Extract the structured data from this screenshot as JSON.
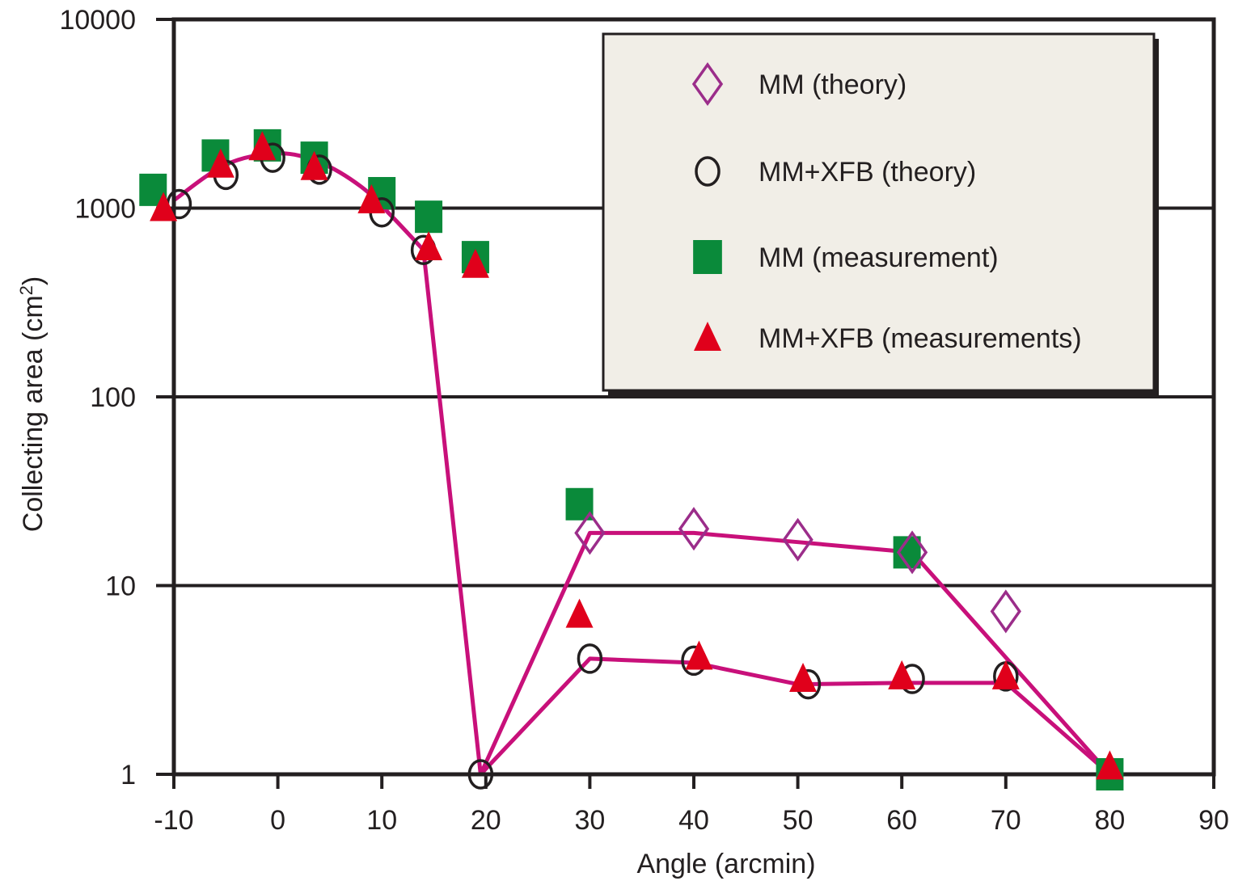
{
  "chart_data": {
    "type": "scatter",
    "xlabel": "Angle (arcmin)",
    "ylabel": "Collecting area (cm",
    "ylabel_superscript": "2",
    "ylabel_suffix": ")",
    "y_scale": "log",
    "xlim": [
      -10,
      90
    ],
    "ylim": [
      1,
      10000
    ],
    "x_ticks": [
      -10,
      0,
      10,
      20,
      30,
      40,
      50,
      60,
      70,
      80,
      90
    ],
    "x_tick_labels": [
      "-10",
      "0",
      "10",
      "20",
      "30",
      "40",
      "50",
      "60",
      "70",
      "80",
      "90"
    ],
    "y_ticks": [
      1,
      10,
      100,
      1000,
      10000
    ],
    "y_tick_labels": [
      "1",
      "10",
      "100",
      "1000",
      "10000"
    ],
    "grid": "horizontal",
    "legend_position": "top-right",
    "colors": {
      "line": "#c8107a",
      "diamond": "#9b2d8a",
      "circle": "#231f20",
      "square": "#0a8a3a",
      "triangle": "#e0001b",
      "legend_bg": "#f1eee7",
      "frame": "#231f20"
    },
    "series": [
      {
        "name": "MM (theory)",
        "marker": "diamond",
        "points": [
          [
            30,
            19
          ],
          [
            40,
            20
          ],
          [
            50,
            17.5
          ],
          [
            61,
            15
          ],
          [
            70,
            7.3
          ]
        ]
      },
      {
        "name": "MM+XFB (theory)",
        "marker": "circle",
        "points": [
          [
            -9.5,
            1050
          ],
          [
            -5,
            1500
          ],
          [
            -0.5,
            1850
          ],
          [
            4,
            1600
          ],
          [
            10,
            950
          ],
          [
            14,
            600
          ],
          [
            19.5,
            1
          ],
          [
            30,
            4.1
          ],
          [
            40,
            4.0
          ],
          [
            51,
            3.0
          ],
          [
            61,
            3.2
          ],
          [
            70,
            3.3
          ]
        ]
      },
      {
        "name": "MM (measurement)",
        "marker": "square",
        "points": [
          [
            -12,
            1250
          ],
          [
            -6,
            1900
          ],
          [
            -1,
            2150
          ],
          [
            3.5,
            1850
          ],
          [
            10,
            1200
          ],
          [
            14.5,
            900
          ],
          [
            19,
            550
          ],
          [
            29,
            27
          ],
          [
            60.5,
            15
          ],
          [
            80,
            1
          ]
        ]
      },
      {
        "name": "MM+XFB (measurements)",
        "marker": "triangle",
        "points": [
          [
            -11,
            1000
          ],
          [
            -5.5,
            1700
          ],
          [
            -1.5,
            2100
          ],
          [
            3.5,
            1650
          ],
          [
            9,
            1100
          ],
          [
            14.5,
            620
          ],
          [
            19,
            500
          ],
          [
            29,
            7
          ],
          [
            40.5,
            4.2
          ],
          [
            50.5,
            3.2
          ],
          [
            60,
            3.3
          ],
          [
            70,
            3.3
          ],
          [
            80,
            1.1
          ]
        ]
      }
    ],
    "fit_lines": [
      {
        "curve": "smooth",
        "points": [
          [
            -10,
            1100
          ],
          [
            -5,
            1700
          ],
          [
            0,
            1950
          ],
          [
            4,
            1750
          ],
          [
            8,
            1300
          ],
          [
            11,
            900
          ],
          [
            14,
            600
          ],
          [
            19.5,
            1
          ],
          [
            30,
            19
          ],
          [
            40,
            19
          ],
          [
            50,
            17
          ],
          [
            61,
            15
          ],
          [
            80,
            1
          ]
        ]
      },
      {
        "curve": "linear",
        "points": [
          [
            19.5,
            1
          ],
          [
            30,
            4.1
          ],
          [
            40,
            3.9
          ],
          [
            50,
            3.0
          ],
          [
            60,
            3.05
          ],
          [
            70,
            3.05
          ],
          [
            80,
            1
          ]
        ]
      }
    ]
  }
}
